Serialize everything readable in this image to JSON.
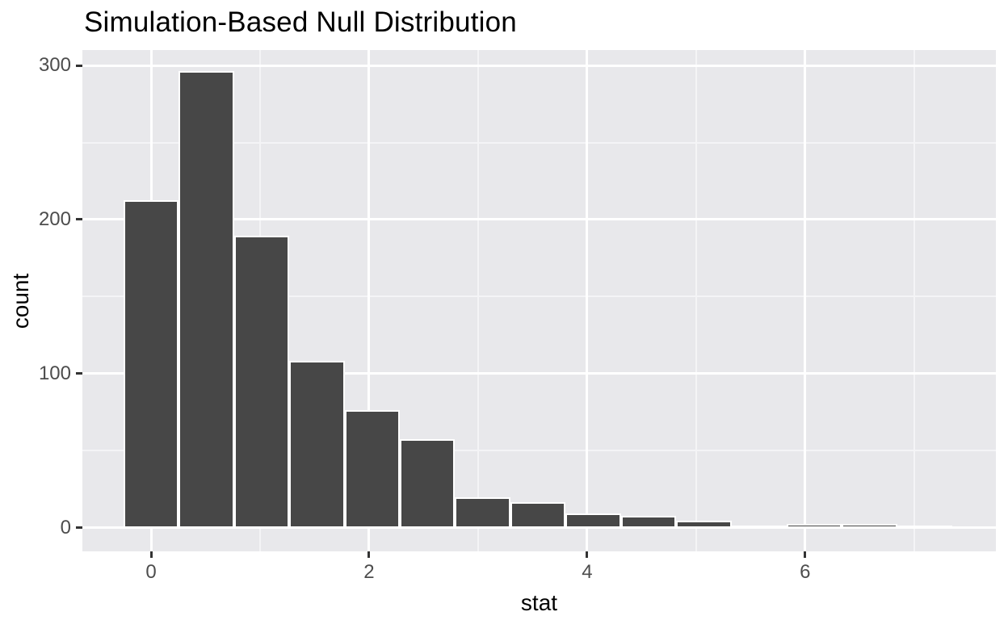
{
  "chart_data": {
    "type": "bar",
    "subtype": "histogram",
    "title": "Simulation-Based Null Distribution",
    "xlabel": "stat",
    "ylabel": "count",
    "bin_start": -0.253,
    "binwidth": 0.507,
    "bin_centers": [
      0,
      0.5,
      1.0,
      1.5,
      2.0,
      2.5,
      3.0,
      3.5,
      4.0,
      4.5,
      5.0,
      5.5,
      6.0,
      6.5,
      7.0
    ],
    "counts": [
      211,
      295,
      188,
      107,
      75,
      56,
      18,
      15,
      8,
      6,
      3,
      0,
      1,
      1,
      0
    ],
    "x_ticks": [
      0,
      2,
      4,
      6
    ],
    "x_tick_labels": [
      "0",
      "2",
      "4",
      "6"
    ],
    "x_minor_ticks": [
      1,
      3,
      5,
      7
    ],
    "y_ticks": [
      0,
      100,
      200,
      300
    ],
    "y_tick_labels": [
      "0",
      "100",
      "200",
      "300"
    ],
    "y_minor_ticks": [
      50,
      150,
      250
    ],
    "xlim": [
      -0.63,
      7.75
    ],
    "ylim": [
      -15.3,
      310
    ],
    "grid": "on",
    "legend": "none",
    "colors": {
      "bar_fill": "#474747",
      "bar_stroke": "#FFFFFF",
      "panel_bg": "#E8E8EB",
      "grid_major": "#FFFFFF",
      "grid_minor": "#F4F4F6",
      "tick_mark": "#333333",
      "tick_label": "#4D4D4D",
      "title": "#000000",
      "page_bg": "#FFFFFF"
    }
  }
}
